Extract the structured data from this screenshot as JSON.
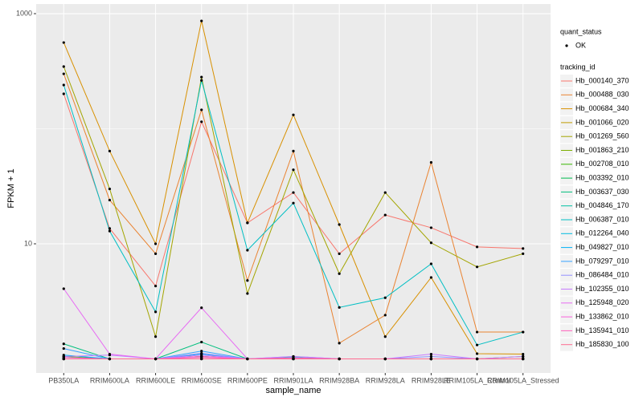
{
  "chart_data": {
    "type": "line",
    "log_scale": true,
    "grid": true,
    "x_label": "sample_name",
    "y_label": "FPKM + 1",
    "ylim": [
      0.755,
      1213
    ],
    "yticks": [
      10,
      1000
    ],
    "point_color": "#000000",
    "legend_position": "right",
    "shape_legend_title": "quant_status",
    "shape_legend_entries": [
      "OK"
    ],
    "legend_title": "tracking_id",
    "categories": [
      "PB350LA",
      "RRIM600LA",
      "RRIM600LE",
      "RRIM600SE",
      "RRIM600PE",
      "RRIM901LA",
      "RRIM928BA",
      "RRIM928LA",
      "RRIM928LE",
      "RRIM105LA_Control",
      "RRIM105LA_Stressed"
    ],
    "series": [
      {
        "name": "Hb_000140_370",
        "color": "#F8766D",
        "values": [
          201,
          13.6,
          4.3,
          115,
          15.2,
          27.9,
          8.2,
          17.8,
          13.8,
          9.4,
          9.1
        ]
      },
      {
        "name": "Hb_000488_030",
        "color": "#EA8331",
        "values": [
          300,
          24,
          8.2,
          146,
          4.8,
          64,
          1.37,
          2.4,
          51,
          1.71,
          1.71
        ]
      },
      {
        "name": "Hb_000684_340",
        "color": "#D89000",
        "values": [
          561,
          64,
          10,
          865,
          15.2,
          132,
          14.7,
          1.56,
          5.1,
          1.11,
          1.1
        ]
      },
      {
        "name": "Hb_001066_020",
        "color": "#C09B00",
        "values": [
          1,
          1,
          1,
          1.05,
          1,
          1,
          1,
          1,
          1,
          1,
          1
        ]
      },
      {
        "name": "Hb_001269_560",
        "color": "#A3A500",
        "values": [
          347,
          30,
          1.56,
          281,
          3.7,
          44,
          5.5,
          27.9,
          10.2,
          6.3,
          8.2
        ]
      },
      {
        "name": "Hb_001863_210",
        "color": "#7CAE00",
        "values": [
          1,
          1,
          1,
          1,
          1,
          1,
          1,
          1,
          1,
          1,
          1.05
        ]
      },
      {
        "name": "Hb_002708_010",
        "color": "#39B600",
        "values": [
          1.05,
          1,
          1,
          1.05,
          1,
          1,
          1,
          1,
          1,
          1,
          1
        ]
      },
      {
        "name": "Hb_003392_010",
        "color": "#00BB4E",
        "values": [
          1,
          1,
          1,
          1,
          1,
          1,
          1,
          1,
          1,
          1,
          1
        ]
      },
      {
        "name": "Hb_003637_030",
        "color": "#00BF7D",
        "values": [
          1.35,
          1,
          1,
          1.4,
          1,
          1,
          1,
          1,
          1,
          1,
          1
        ]
      },
      {
        "name": "Hb_004846_170",
        "color": "#00C1A3",
        "values": [
          1,
          1,
          1,
          1,
          1,
          1.03,
          1,
          1,
          1,
          1,
          1
        ]
      },
      {
        "name": "Hb_006387_010",
        "color": "#00BFC4",
        "values": [
          240,
          12.9,
          2.56,
          263,
          8.8,
          22.6,
          2.8,
          3.4,
          6.7,
          1.32,
          1.71
        ]
      },
      {
        "name": "Hb_012264_040",
        "color": "#00BAE0",
        "values": [
          1,
          1,
          1,
          1,
          1,
          1,
          1,
          1,
          1,
          1,
          1
        ]
      },
      {
        "name": "Hb_049827_010",
        "color": "#00B0F6",
        "values": [
          1.08,
          1,
          1,
          1.1,
          1,
          1,
          1,
          1,
          1,
          1,
          1
        ]
      },
      {
        "name": "Hb_079297_010",
        "color": "#35A2FF",
        "values": [
          1.23,
          1,
          1,
          1.17,
          1,
          1,
          1,
          1,
          1,
          1,
          1
        ]
      },
      {
        "name": "Hb_086484_010",
        "color": "#9590FF",
        "values": [
          1,
          1,
          1,
          1.12,
          1,
          1.05,
          1,
          1,
          1.05,
          1,
          1
        ]
      },
      {
        "name": "Hb_102355_010",
        "color": "#C77CFF",
        "values": [
          1.05,
          1.08,
          1,
          1.08,
          1,
          1.05,
          1,
          1,
          1.1,
          1,
          1.05
        ]
      },
      {
        "name": "Hb_125948_020",
        "color": "#E76BF3",
        "values": [
          4.07,
          1.1,
          1,
          2.78,
          1,
          1,
          1,
          1,
          1,
          1,
          1
        ]
      },
      {
        "name": "Hb_133862_010",
        "color": "#FA62DB",
        "values": [
          1.03,
          1,
          1,
          1.05,
          1,
          1,
          1,
          1,
          1,
          1,
          1
        ]
      },
      {
        "name": "Hb_135941_010",
        "color": "#FF62BC",
        "values": [
          1,
          1,
          1,
          1.03,
          1,
          1.02,
          1,
          1,
          1,
          1,
          1
        ]
      },
      {
        "name": "Hb_185830_100",
        "color": "#FF6C91",
        "values": [
          1,
          1,
          1,
          1,
          1,
          1,
          1,
          1,
          1,
          1,
          1
        ]
      }
    ]
  }
}
